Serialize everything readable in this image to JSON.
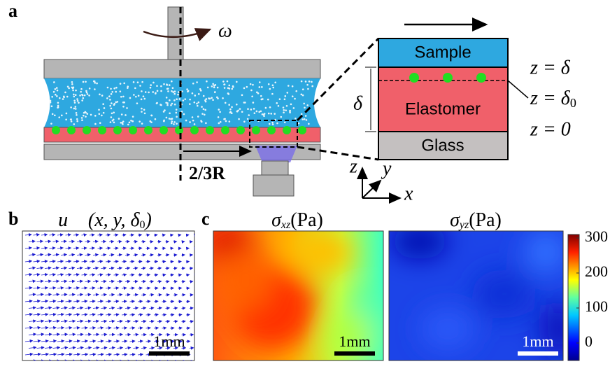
{
  "panel_a": {
    "label": "a",
    "omega": "ω",
    "sample": "Sample",
    "elastomer": "Elastomer",
    "glass": "Glass",
    "delta": "δ",
    "z_delta": "z = δ",
    "z_delta0": {
      "base": "z = δ",
      "sub": "0"
    },
    "z_zero": "z = 0",
    "radius": "2/3R",
    "axes": {
      "z": "z",
      "y": "y",
      "x": "x"
    }
  },
  "panel_b": {
    "label": "b",
    "title": {
      "base": "u⃗ (x, y, δ",
      "sub": "0",
      "end": ")"
    },
    "scale": "1mm"
  },
  "panel_c": {
    "label": "c",
    "title_xz": {
      "symbol": "σ",
      "sub": "xz",
      "unit": "(Pa)"
    },
    "title_yz": {
      "symbol": "σ",
      "sub": "yz",
      "unit": "(Pa)"
    },
    "scale_xz": "1mm",
    "scale_yz": "1mm",
    "colorbar": {
      "lim": [
        -50,
        310
      ],
      "ticks": [
        0,
        100,
        200,
        300
      ]
    }
  }
}
